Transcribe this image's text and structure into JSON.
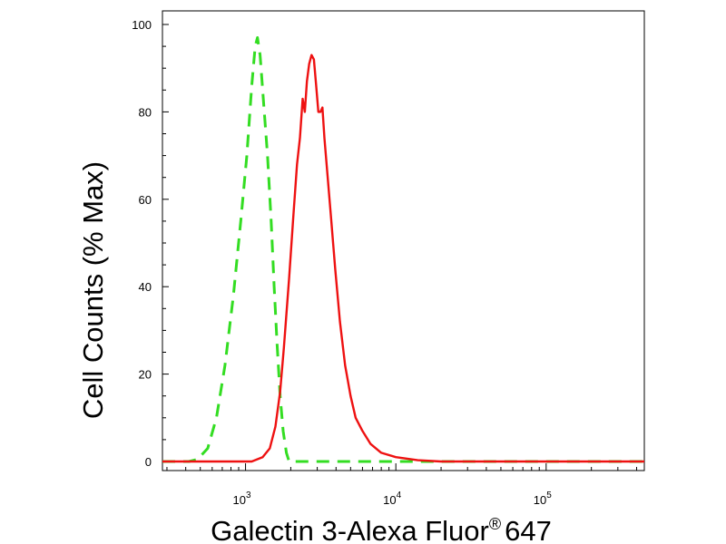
{
  "chart_data": {
    "type": "line",
    "xlabel": "Galectin 3-Alexa Fluor",
    "xlabel_superscript": "®",
    "xlabel_suffix": "647",
    "ylabel": "Cell Counts (% Max)",
    "x_scale": "log",
    "xlim": [
      280,
      450000
    ],
    "ylim": [
      0,
      100
    ],
    "y_ticks": [
      0,
      20,
      40,
      60,
      80,
      100
    ],
    "x_major_ticks": [
      {
        "value": 1000,
        "base": "10",
        "exp": "3"
      },
      {
        "value": 10000,
        "base": "10",
        "exp": "4"
      },
      {
        "value": 100000,
        "base": "10",
        "exp": "5"
      }
    ],
    "grid": false,
    "legend": "none",
    "series": [
      {
        "color": "#33dd22",
        "style": "dashed",
        "points": [
          [
            280,
            0
          ],
          [
            420,
            0
          ],
          [
            480,
            0.5
          ],
          [
            560,
            3
          ],
          [
            640,
            10
          ],
          [
            730,
            22
          ],
          [
            830,
            38
          ],
          [
            930,
            55
          ],
          [
            1020,
            70
          ],
          [
            1100,
            86
          ],
          [
            1160,
            95
          ],
          [
            1200,
            97
          ],
          [
            1250,
            93
          ],
          [
            1320,
            82
          ],
          [
            1400,
            70
          ],
          [
            1480,
            55
          ],
          [
            1550,
            40
          ],
          [
            1620,
            27
          ],
          [
            1700,
            15
          ],
          [
            1780,
            7
          ],
          [
            1870,
            2
          ],
          [
            1950,
            0
          ],
          [
            300000,
            0
          ],
          [
            450000,
            0
          ]
        ]
      },
      {
        "color": "#ee1111",
        "style": "solid",
        "points": [
          [
            280,
            0
          ],
          [
            1100,
            0
          ],
          [
            1300,
            1
          ],
          [
            1450,
            3
          ],
          [
            1580,
            8
          ],
          [
            1700,
            16
          ],
          [
            1800,
            26
          ],
          [
            1950,
            42
          ],
          [
            2080,
            56
          ],
          [
            2200,
            68
          ],
          [
            2300,
            74
          ],
          [
            2400,
            83
          ],
          [
            2480,
            80
          ],
          [
            2560,
            87
          ],
          [
            2650,
            91
          ],
          [
            2750,
            93
          ],
          [
            2850,
            92
          ],
          [
            2950,
            86
          ],
          [
            3050,
            80
          ],
          [
            3150,
            80
          ],
          [
            3250,
            81
          ],
          [
            3350,
            74
          ],
          [
            3500,
            66
          ],
          [
            3700,
            56
          ],
          [
            3950,
            44
          ],
          [
            4250,
            32
          ],
          [
            4600,
            22
          ],
          [
            5000,
            15
          ],
          [
            5400,
            10
          ],
          [
            6000,
            7
          ],
          [
            6800,
            4
          ],
          [
            8000,
            2
          ],
          [
            10000,
            1
          ],
          [
            14000,
            0.3
          ],
          [
            20000,
            0
          ],
          [
            450000,
            0
          ]
        ]
      }
    ]
  }
}
